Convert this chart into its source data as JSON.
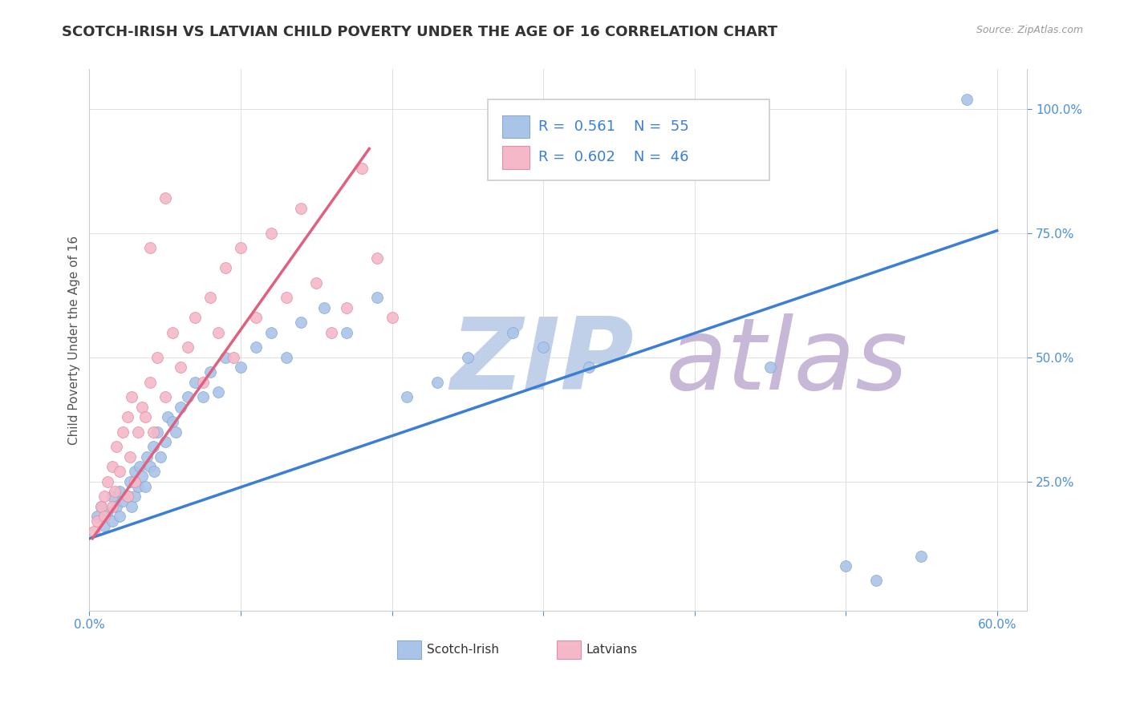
{
  "title": "SCOTCH-IRISH VS LATVIAN CHILD POVERTY UNDER THE AGE OF 16 CORRELATION CHART",
  "source": "Source: ZipAtlas.com",
  "ylabel": "Child Poverty Under the Age of 16",
  "xlim": [
    0.0,
    0.62
  ],
  "ylim": [
    -0.01,
    1.08
  ],
  "xticks": [
    0.0,
    0.1,
    0.2,
    0.3,
    0.4,
    0.5,
    0.6
  ],
  "xticklabels": [
    "0.0%",
    "",
    "",
    "",
    "",
    "",
    "60.0%"
  ],
  "ytick_positions": [
    0.25,
    0.5,
    0.75,
    1.0
  ],
  "ytick_labels": [
    "25.0%",
    "50.0%",
    "75.0%",
    "100.0%"
  ],
  "scotch_irish_R": "0.561",
  "scotch_irish_N": "55",
  "latvian_R": "0.602",
  "latvian_N": "46",
  "scotch_irish_color": "#aac4e8",
  "latvian_color": "#f5b8c8",
  "scotch_irish_edge": "#85aad4",
  "latvian_edge": "#e090a8",
  "blue_line_color": "#3a7fd5",
  "pink_line_color": "#e06080",
  "watermark": "ZIPatlas",
  "watermark_color_zip": "#c0d0e8",
  "watermark_color_atlas": "#c8b8d8",
  "legend_blue_label": "Scotch-Irish",
  "legend_pink_label": "Latvians",
  "scotch_irish_x": [
    0.005,
    0.008,
    0.01,
    0.012,
    0.015,
    0.015,
    0.018,
    0.02,
    0.02,
    0.022,
    0.025,
    0.027,
    0.028,
    0.03,
    0.03,
    0.032,
    0.033,
    0.035,
    0.037,
    0.038,
    0.04,
    0.042,
    0.043,
    0.045,
    0.047,
    0.05,
    0.052,
    0.055,
    0.057,
    0.06,
    0.065,
    0.07,
    0.075,
    0.08,
    0.085,
    0.09,
    0.1,
    0.11,
    0.12,
    0.13,
    0.14,
    0.155,
    0.17,
    0.19,
    0.21,
    0.23,
    0.25,
    0.28,
    0.3,
    0.33,
    0.45,
    0.5,
    0.52,
    0.55,
    0.58
  ],
  "scotch_irish_y": [
    0.18,
    0.2,
    0.16,
    0.19,
    0.17,
    0.22,
    0.2,
    0.18,
    0.23,
    0.21,
    0.22,
    0.25,
    0.2,
    0.22,
    0.27,
    0.24,
    0.28,
    0.26,
    0.24,
    0.3,
    0.28,
    0.32,
    0.27,
    0.35,
    0.3,
    0.33,
    0.38,
    0.37,
    0.35,
    0.4,
    0.42,
    0.45,
    0.42,
    0.47,
    0.43,
    0.5,
    0.48,
    0.52,
    0.55,
    0.5,
    0.57,
    0.6,
    0.55,
    0.62,
    0.42,
    0.45,
    0.5,
    0.55,
    0.52,
    0.48,
    0.48,
    0.08,
    0.05,
    0.1,
    1.02
  ],
  "latvian_x": [
    0.003,
    0.005,
    0.008,
    0.01,
    0.01,
    0.012,
    0.015,
    0.015,
    0.017,
    0.018,
    0.02,
    0.022,
    0.025,
    0.025,
    0.027,
    0.028,
    0.03,
    0.032,
    0.035,
    0.037,
    0.04,
    0.042,
    0.045,
    0.05,
    0.055,
    0.06,
    0.065,
    0.07,
    0.075,
    0.08,
    0.085,
    0.09,
    0.095,
    0.1,
    0.11,
    0.12,
    0.13,
    0.14,
    0.15,
    0.16,
    0.17,
    0.18,
    0.19,
    0.2,
    0.04,
    0.05
  ],
  "latvian_y": [
    0.15,
    0.17,
    0.2,
    0.22,
    0.18,
    0.25,
    0.2,
    0.28,
    0.23,
    0.32,
    0.27,
    0.35,
    0.22,
    0.38,
    0.3,
    0.42,
    0.25,
    0.35,
    0.4,
    0.38,
    0.45,
    0.35,
    0.5,
    0.42,
    0.55,
    0.48,
    0.52,
    0.58,
    0.45,
    0.62,
    0.55,
    0.68,
    0.5,
    0.72,
    0.58,
    0.75,
    0.62,
    0.8,
    0.65,
    0.55,
    0.6,
    0.88,
    0.7,
    0.58,
    0.72,
    0.82
  ],
  "blue_line_x": [
    0.0,
    0.6
  ],
  "blue_line_y": [
    0.135,
    0.755
  ],
  "pink_line_x": [
    0.002,
    0.185
  ],
  "pink_line_y": [
    0.135,
    0.92
  ],
  "background_color": "#ffffff",
  "grid_color": "#d8d8d8",
  "title_fontsize": 13,
  "label_fontsize": 11,
  "tick_fontsize": 11,
  "legend_fontsize": 13
}
